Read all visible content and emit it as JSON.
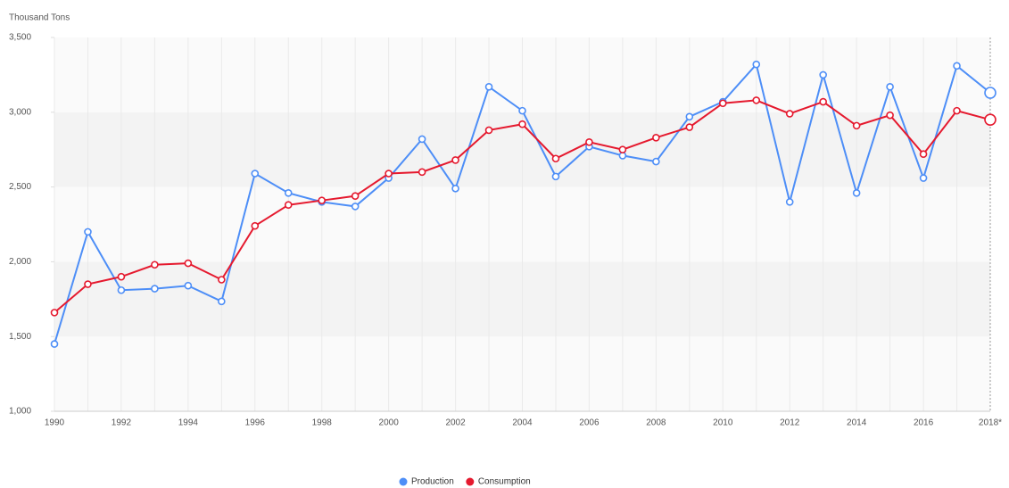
{
  "chart_data": {
    "type": "line",
    "y_axis_label": "Thousand Tons",
    "categories": [
      "1990",
      null,
      "1992",
      null,
      "1994",
      null,
      "1996",
      null,
      "1998",
      null,
      "2000",
      null,
      "2002",
      null,
      "2004",
      null,
      "2006",
      null,
      "2008",
      null,
      "2010",
      null,
      "2012",
      null,
      "2014",
      null,
      "2016",
      null,
      "2018*"
    ],
    "series": [
      {
        "name": "Production",
        "color": "#4d8ef7",
        "values": [
          1450,
          2200,
          1810,
          1820,
          1840,
          1735,
          2590,
          2460,
          2400,
          2370,
          2560,
          2820,
          2490,
          3170,
          3010,
          2570,
          2770,
          2710,
          2670,
          2970,
          3070,
          3320,
          2400,
          3250,
          2460,
          3170,
          2560,
          3310,
          3130
        ]
      },
      {
        "name": "Consumption",
        "color": "#e5192e",
        "values": [
          1660,
          1850,
          1900,
          1980,
          1990,
          1880,
          2240,
          2380,
          2410,
          2440,
          2590,
          2600,
          2680,
          2880,
          2920,
          2690,
          2800,
          2750,
          2830,
          2900,
          3060,
          3080,
          2990,
          3070,
          2910,
          2980,
          2720,
          3010,
          2950
        ]
      }
    ],
    "ylim": [
      1000,
      3500
    ],
    "yticks": [
      {
        "value": 1000,
        "label": "1,000"
      },
      {
        "value": 1500,
        "label": "1,500"
      },
      {
        "value": 2000,
        "label": "2,000"
      },
      {
        "value": 2500,
        "label": "2,500"
      },
      {
        "value": 3000,
        "label": "3,000"
      },
      {
        "value": 3500,
        "label": "3,500"
      }
    ],
    "legend": "bottom"
  }
}
